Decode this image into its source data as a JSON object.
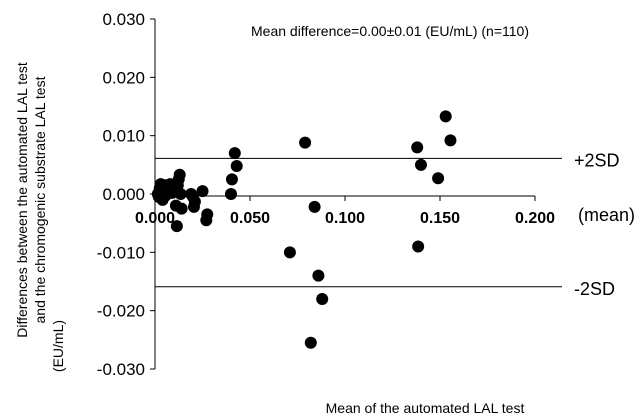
{
  "chart_data": {
    "type": "scatter",
    "title": "",
    "annotation": "Mean difference=0.00±0.01 (EU/mL) (n=110)",
    "xlabel": "Mean of the automated LAL test",
    "ylabel_lines": [
      "Differences between the automated LAL test",
      "and the chromogenic substrate LAL test",
      "(EU/mL)"
    ],
    "x_axis_suffix": "(mean)",
    "xlim": [
      0,
      0.2
    ],
    "ylim": [
      -0.03,
      0.03
    ],
    "x_ticks": [
      "0.000",
      "0.050",
      "0.100",
      "0.150",
      "0.200"
    ],
    "y_ticks": [
      "0.030",
      "0.020",
      "0.010",
      "0.000",
      "-0.010",
      "-0.020",
      "-0.030"
    ],
    "reference_lines": [
      {
        "label": "+2SD",
        "y": 0.0061
      },
      {
        "label": "-2SD",
        "y": -0.0159
      }
    ],
    "grid": false,
    "marker_color": "#000000",
    "points": [
      {
        "x": 0.0015,
        "y": 0.0
      },
      {
        "x": 0.002,
        "y": -0.0005
      },
      {
        "x": 0.0025,
        "y": 0.001
      },
      {
        "x": 0.003,
        "y": 0.0017
      },
      {
        "x": 0.0035,
        "y": 0.0003
      },
      {
        "x": 0.004,
        "y": -0.001
      },
      {
        "x": 0.0045,
        "y": 0.0005
      },
      {
        "x": 0.005,
        "y": 0.0015
      },
      {
        "x": 0.0055,
        "y": -0.0003
      },
      {
        "x": 0.006,
        "y": 0.0008
      },
      {
        "x": 0.007,
        "y": 0.0012
      },
      {
        "x": 0.008,
        "y": 0.0017
      },
      {
        "x": 0.009,
        "y": 0.0002
      },
      {
        "x": 0.01,
        "y": 0.0008
      },
      {
        "x": 0.011,
        "y": -0.002
      },
      {
        "x": 0.0115,
        "y": -0.0055
      },
      {
        "x": 0.012,
        "y": 0.0015
      },
      {
        "x": 0.0125,
        "y": 0.0025
      },
      {
        "x": 0.013,
        "y": 0.0033
      },
      {
        "x": 0.0135,
        "y": 0.0
      },
      {
        "x": 0.014,
        "y": -0.0025
      },
      {
        "x": 0.019,
        "y": 0.0
      },
      {
        "x": 0.02,
        "y": -0.0005
      },
      {
        "x": 0.0205,
        "y": -0.0022
      },
      {
        "x": 0.021,
        "y": -0.0013
      },
      {
        "x": 0.025,
        "y": 0.0005
      },
      {
        "x": 0.027,
        "y": -0.0045
      },
      {
        "x": 0.0275,
        "y": -0.0035
      },
      {
        "x": 0.04,
        "y": 0.0
      },
      {
        "x": 0.0405,
        "y": 0.0025
      },
      {
        "x": 0.042,
        "y": 0.007
      },
      {
        "x": 0.043,
        "y": 0.0048
      },
      {
        "x": 0.071,
        "y": -0.01
      },
      {
        "x": 0.079,
        "y": 0.0088
      },
      {
        "x": 0.082,
        "y": -0.0255
      },
      {
        "x": 0.084,
        "y": -0.0022
      },
      {
        "x": 0.086,
        "y": -0.014
      },
      {
        "x": 0.088,
        "y": -0.018
      },
      {
        "x": 0.138,
        "y": 0.008
      },
      {
        "x": 0.1385,
        "y": -0.009
      },
      {
        "x": 0.14,
        "y": 0.005
      },
      {
        "x": 0.149,
        "y": 0.0027
      },
      {
        "x": 0.153,
        "y": 0.0133
      },
      {
        "x": 0.1555,
        "y": 0.0092
      }
    ]
  }
}
